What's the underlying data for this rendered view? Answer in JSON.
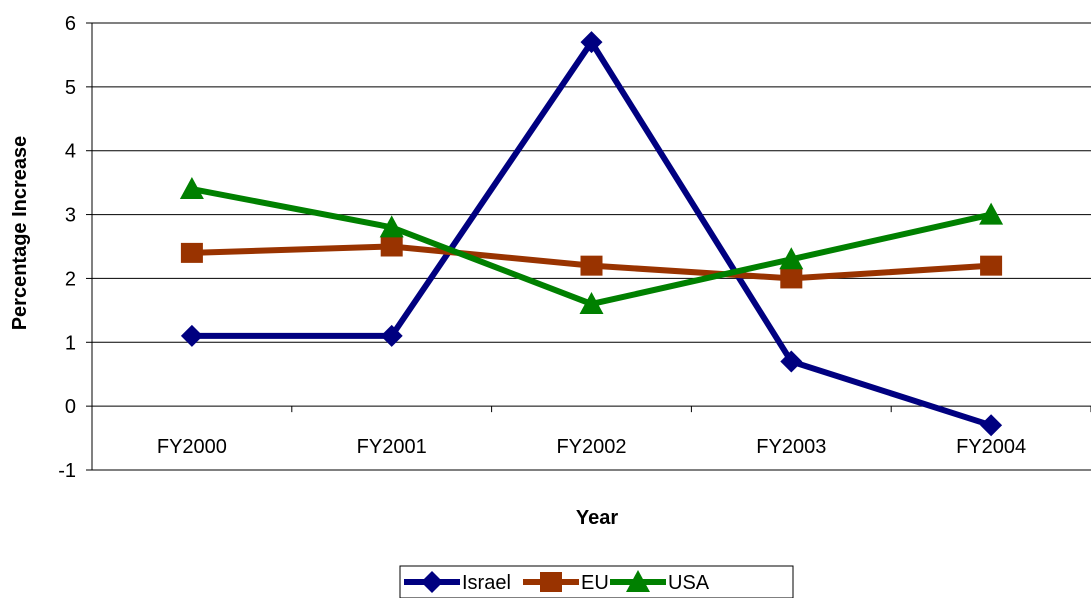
{
  "chart_data": {
    "type": "line",
    "title": "",
    "xlabel": "Year",
    "ylabel": "Percentage Increase",
    "categories": [
      "FY2000",
      "FY2001",
      "FY2002",
      "FY2003",
      "FY2004"
    ],
    "ylim": [
      -1,
      6
    ],
    "yticks": [
      "-1",
      "0",
      "1",
      "2",
      "3",
      "4",
      "5",
      "6"
    ],
    "grid": "horizontal",
    "legend_position": "bottom",
    "series": [
      {
        "name": "Israel",
        "values": [
          1.1,
          1.1,
          5.7,
          0.7,
          -0.3
        ],
        "color": "#000080",
        "marker": "diamond"
      },
      {
        "name": "EU",
        "values": [
          2.4,
          2.5,
          2.2,
          2.0,
          2.2
        ],
        "color": "#993300",
        "marker": "square"
      },
      {
        "name": "USA",
        "values": [
          3.4,
          2.8,
          1.6,
          2.3,
          3.0
        ],
        "color": "#008000",
        "marker": "triangle"
      }
    ]
  }
}
